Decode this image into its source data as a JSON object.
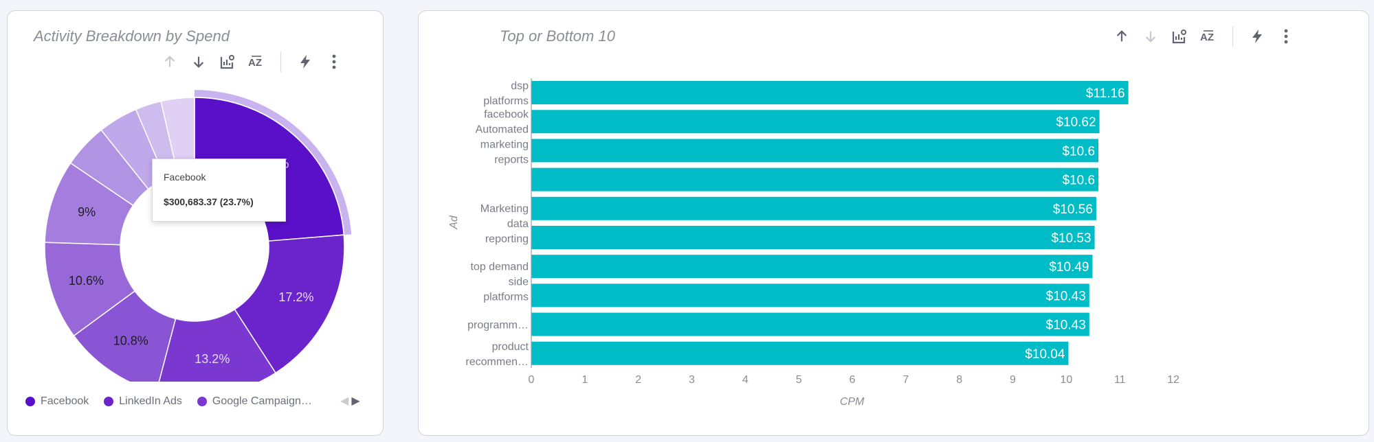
{
  "donut_panel": {
    "title": "Activity Breakdown by Spend",
    "legend": [
      {
        "label": "Facebook",
        "color": "#5a10c8"
      },
      {
        "label": "LinkedIn Ads",
        "color": "#6b23cc"
      },
      {
        "label": "Google Campaign…",
        "color": "#7a38d0"
      }
    ],
    "legend_prev": "◀",
    "legend_next": "▶",
    "tooltip": {
      "title": "Facebook",
      "value": "$300,683.37 (23.7%)"
    }
  },
  "bar_panel": {
    "title": "Top or Bottom 10"
  },
  "toolbar_icons": [
    "sort-ascending-icon",
    "sort-descending-icon",
    "chart-settings-icon",
    "sort-alphabetical-icon",
    "lightning-icon",
    "more-vertical-icon"
  ],
  "chart_data": [
    {
      "type": "pie",
      "variant": "donut",
      "title": "Activity Breakdown by Spend",
      "slices": [
        {
          "label": "Facebook",
          "value": 23.7,
          "value_label": "23.7%",
          "color": "#5a10c8",
          "highlighted": true
        },
        {
          "label": "LinkedIn Ads",
          "value": 17.2,
          "value_label": "17.2%",
          "color": "#6b23cc"
        },
        {
          "label": "Google Campaign…",
          "value": 13.2,
          "value_label": "13.2%",
          "color": "#7a38d0"
        },
        {
          "value": 10.8,
          "value_label": "10.8%",
          "color": "#8a55d4"
        },
        {
          "value": 10.6,
          "value_label": "10.6%",
          "color": "#9868d9"
        },
        {
          "value": 9.0,
          "value_label": "9%",
          "color": "#a47ddf"
        },
        {
          "value": 4.8,
          "value_label": "",
          "color": "#b193e3"
        },
        {
          "value": 4.3,
          "value_label": "",
          "color": "#c0a9ea"
        },
        {
          "value": 2.8,
          "value_label": "",
          "color": "#cfbcee"
        },
        {
          "value": 3.6,
          "value_label": "",
          "color": "#e0d0f4"
        }
      ]
    },
    {
      "type": "bar",
      "orientation": "horizontal",
      "title": "Top or Bottom 10",
      "xlabel": "CPM",
      "ylabel": "Ad",
      "xlim": [
        0,
        12
      ],
      "xticks": [
        "0",
        "1",
        "2",
        "3",
        "4",
        "5",
        "6",
        "7",
        "8",
        "9",
        "10",
        "11",
        "12"
      ],
      "bar_color": "#00bcc6",
      "bars": [
        {
          "value": 11.16,
          "value_label": "$11.16"
        },
        {
          "value": 10.62,
          "value_label": "$10.62"
        },
        {
          "value": 10.6,
          "value_label": "$10.6"
        },
        {
          "value": 10.6,
          "value_label": "$10.6"
        },
        {
          "value": 10.56,
          "value_label": "$10.56"
        },
        {
          "value": 10.53,
          "value_label": "$10.53"
        },
        {
          "value": 10.49,
          "value_label": "$10.49"
        },
        {
          "value": 10.43,
          "value_label": "$10.43"
        },
        {
          "value": 10.43,
          "value_label": "$10.43"
        },
        {
          "value": 10.04,
          "value_label": "$10.04"
        }
      ],
      "category_labels": [
        {
          "lines": [
            "dsp",
            "platforms"
          ],
          "bars": [
            0
          ]
        },
        {
          "lines": [
            "facebook",
            "Automated",
            "marketing",
            "reports"
          ],
          "bars": [
            1,
            2
          ]
        },
        {
          "lines": [
            "Marketing",
            "data",
            "reporting"
          ],
          "bars": [
            4,
            5
          ]
        },
        {
          "lines": [
            "top demand",
            "side",
            "platforms"
          ],
          "bars": [
            6,
            7
          ]
        },
        {
          "lines": [
            "programm…"
          ],
          "bars": [
            8
          ]
        },
        {
          "lines": [
            "product",
            "recommen…"
          ],
          "bars": [
            9
          ]
        }
      ]
    }
  ]
}
